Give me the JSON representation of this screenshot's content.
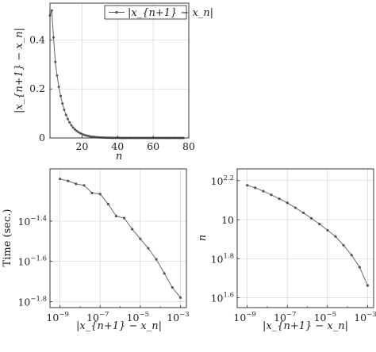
{
  "chart_data": [
    {
      "id": "top",
      "type": "line",
      "xlim": [
        2,
        80
      ],
      "ylim": [
        0,
        0.55
      ],
      "xticks": [
        20,
        40,
        60,
        80
      ],
      "xtick_labels": [
        "20",
        "40",
        "60",
        "80"
      ],
      "yticks": [
        0,
        0.2,
        0.4
      ],
      "ytick_labels": [
        "0",
        "0.2",
        "0.4"
      ],
      "xlabel": "n",
      "ylabel": "|x_{n+1} − x_n|",
      "grid": true,
      "legend_position": "top-right",
      "series": [
        {
          "name": "|x_{n+1} − x_n|",
          "decay": {
            "start_n": 2,
            "end_n": 77,
            "first_values": [
              0.5,
              0.52,
              0.41,
              0.31
            ],
            "ratio": 0.82
          }
        }
      ]
    },
    {
      "id": "bottom-left",
      "type": "line",
      "xscale": "log",
      "yscale": "log",
      "xlim_exp": [
        -9.5,
        -2.7
      ],
      "ylim_exp": [
        -1.83,
        -1.14
      ],
      "xticks_exp": [
        -9,
        -7,
        -5,
        -3
      ],
      "xtick_labels": [
        "10",
        "10",
        "10",
        "10"
      ],
      "xtick_exponents": [
        "−9",
        "−7",
        "−5",
        "−3"
      ],
      "yticks_exp": [
        -1.8,
        -1.6,
        -1.4
      ],
      "ytick_labels": [
        "10",
        "10",
        "10"
      ],
      "ytick_exponents": [
        "−1.8",
        "−1.6",
        "−1.4"
      ],
      "xlabel": "|x_{n+1} − x_n|",
      "ylabel": "Time (sec.)",
      "grid": true,
      "series": [
        {
          "x_exp": [
            -9,
            -8.6,
            -8.2,
            -7.8,
            -7.4,
            -7.0,
            -6.6,
            -6.2,
            -5.8,
            -5.4,
            -5.0,
            -4.6,
            -4.2,
            -3.8,
            -3.4,
            -3.0
          ],
          "y_exp": [
            -1.19,
            -1.2,
            -1.215,
            -1.222,
            -1.26,
            -1.265,
            -1.315,
            -1.375,
            -1.385,
            -1.44,
            -1.488,
            -1.535,
            -1.59,
            -1.66,
            -1.73,
            -1.78
          ]
        }
      ]
    },
    {
      "id": "bottom-right",
      "type": "line",
      "xscale": "log",
      "yscale": "log",
      "xlim_exp": [
        -9.5,
        -2.7
      ],
      "ylim_exp": [
        1.55,
        2.26
      ],
      "xticks_exp": [
        -9,
        -7,
        -5,
        -3
      ],
      "xtick_labels": [
        "10",
        "10",
        "10",
        "10"
      ],
      "xtick_exponents": [
        "−9",
        "−7",
        "−5",
        "−3"
      ],
      "yticks_exp": [
        1.6,
        1.8,
        2,
        2.2
      ],
      "ytick_labels": [
        "10",
        "10",
        "10",
        "10"
      ],
      "ytick_exponents": [
        "1.6",
        "1.8",
        "",
        "2.2"
      ],
      "xlabel": "|x_{n+1} − x_n|",
      "ylabel": "n",
      "grid": true,
      "series": [
        {
          "x_exp": [
            -9,
            -8.6,
            -8.2,
            -7.8,
            -7.4,
            -7.0,
            -6.6,
            -6.2,
            -5.8,
            -5.4,
            -5.0,
            -4.6,
            -4.2,
            -3.8,
            -3.4,
            -3.0
          ],
          "y_exp": [
            2.176,
            2.163,
            2.146,
            2.127,
            2.107,
            2.086,
            2.061,
            2.035,
            2.007,
            1.978,
            1.946,
            1.914,
            1.869,
            1.819,
            1.757,
            1.663
          ]
        }
      ]
    }
  ]
}
